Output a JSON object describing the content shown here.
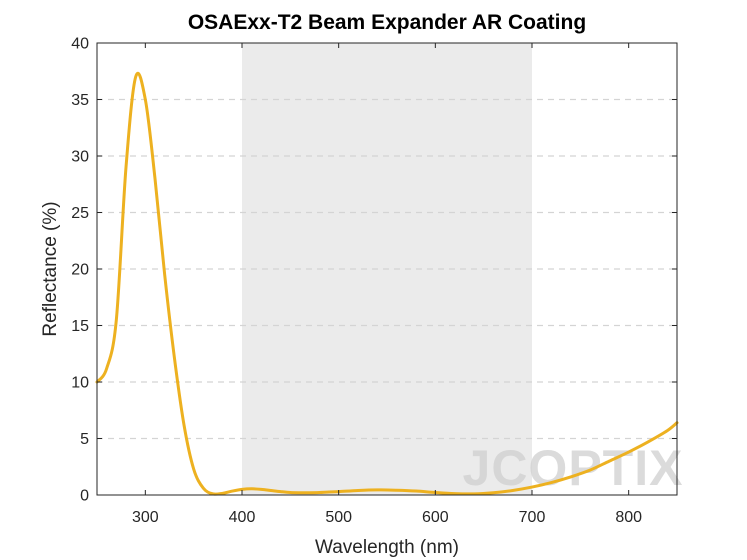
{
  "chart_data": {
    "type": "line",
    "title": "OSAExx-T2 Beam Expander AR Coating",
    "xlabel": "Wavelength (nm)",
    "ylabel": "Reflectance (%)",
    "xlim": [
      250,
      850
    ],
    "ylim": [
      0,
      40
    ],
    "xticks": [
      300,
      400,
      500,
      600,
      700,
      800
    ],
    "yticks": [
      0,
      5,
      10,
      15,
      20,
      25,
      30,
      35,
      40
    ],
    "grid": "horizontal dashed",
    "shaded_region": {
      "x_start": 400,
      "x_end": 700,
      "color": "#ebebeb"
    },
    "series": [
      {
        "color": "#EDB120",
        "x": [
          250,
          260,
          270,
          280,
          290,
          300,
          310,
          320,
          330,
          340,
          350,
          360,
          370,
          380,
          390,
          400,
          410,
          420,
          430,
          440,
          450,
          460,
          470,
          480,
          490,
          500,
          520,
          540,
          560,
          580,
          600,
          620,
          640,
          660,
          680,
          700,
          720,
          740,
          760,
          780,
          800,
          820,
          840,
          850
        ],
        "y": [
          10.0,
          11.2,
          15.5,
          29.0,
          37.0,
          35.0,
          28.0,
          19.5,
          12.2,
          6.2,
          2.3,
          0.6,
          0.1,
          0.15,
          0.35,
          0.5,
          0.55,
          0.5,
          0.4,
          0.3,
          0.22,
          0.2,
          0.2,
          0.22,
          0.27,
          0.3,
          0.4,
          0.45,
          0.42,
          0.35,
          0.22,
          0.12,
          0.1,
          0.2,
          0.4,
          0.7,
          1.1,
          1.6,
          2.2,
          3.0,
          3.8,
          4.7,
          5.7,
          6.4
        ]
      }
    ]
  },
  "watermark": {
    "text": "JCOPTIX"
  }
}
